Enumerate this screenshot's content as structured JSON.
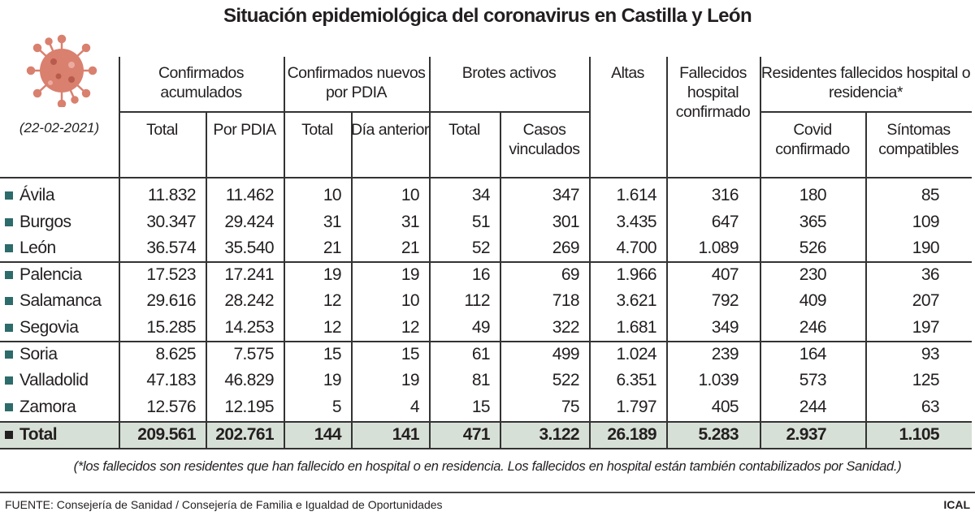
{
  "title": "Situación epidemiológica del coronavirus en Castilla y León",
  "date": "(22-02-2021)",
  "icon": "coronavirus-icon",
  "colors": {
    "bullet": "#2e6b6b",
    "total_row_bg": "#d7e0d6",
    "virus": "#d9806f"
  },
  "header": {
    "groups": [
      "Confirmados acumulados",
      "Confirmados nuevos por PDIA",
      "Brotes activos",
      "Altas",
      "Fallecidos hospital confirmado",
      "Residentes fallecidos hospital o residencia*"
    ],
    "sub": [
      "Total",
      "Por PDIA",
      "Total",
      "Día anterior",
      "Total",
      "Casos vinculados",
      "Covid confirmado",
      "Síntomas compatibles"
    ]
  },
  "chart_data": {
    "type": "table",
    "title": "Situación epidemiológica del coronavirus en Castilla y León",
    "columns": [
      "Confirmados acumulados - Total",
      "Confirmados acumulados - Por PDIA",
      "Confirmados nuevos por PDIA - Total",
      "Confirmados nuevos por PDIA - Día anterior",
      "Brotes activos - Total",
      "Brotes activos - Casos vinculados",
      "Altas",
      "Fallecidos hospital confirmado",
      "Residentes fallecidos - Covid confirmado",
      "Residentes fallecidos - Síntomas compatibles"
    ],
    "rows": [
      {
        "label": "Ávila",
        "values": [
          "11.832",
          "11.462",
          "10",
          "10",
          "34",
          "347",
          "1.614",
          "316",
          "180",
          "85"
        ]
      },
      {
        "label": "Burgos",
        "values": [
          "30.347",
          "29.424",
          "31",
          "31",
          "51",
          "301",
          "3.435",
          "647",
          "365",
          "109"
        ]
      },
      {
        "label": "León",
        "values": [
          "36.574",
          "35.540",
          "21",
          "21",
          "52",
          "269",
          "4.700",
          "1.089",
          "526",
          "190"
        ]
      },
      {
        "label": "Palencia",
        "values": [
          "17.523",
          "17.241",
          "19",
          "19",
          "16",
          "69",
          "1.966",
          "407",
          "230",
          "36"
        ]
      },
      {
        "label": "Salamanca",
        "values": [
          "29.616",
          "28.242",
          "12",
          "10",
          "112",
          "718",
          "3.621",
          "792",
          "409",
          "207"
        ]
      },
      {
        "label": "Segovia",
        "values": [
          "15.285",
          "14.253",
          "12",
          "12",
          "49",
          "322",
          "1.681",
          "349",
          "246",
          "197"
        ]
      },
      {
        "label": "Soria",
        "values": [
          "8.625",
          "7.575",
          "15",
          "15",
          "61",
          "499",
          "1.024",
          "239",
          "164",
          "93"
        ]
      },
      {
        "label": "Valladolid",
        "values": [
          "47.183",
          "46.829",
          "19",
          "19",
          "81",
          "522",
          "6.351",
          "1.039",
          "573",
          "125"
        ]
      },
      {
        "label": "Zamora",
        "values": [
          "12.576",
          "12.195",
          "5",
          "4",
          "15",
          "75",
          "1.797",
          "405",
          "244",
          "63"
        ]
      }
    ],
    "total": {
      "label": "Total",
      "values": [
        "209.561",
        "202.761",
        "144",
        "141",
        "471",
        "3.122",
        "26.189",
        "5.283",
        "2.937",
        "1.105"
      ]
    }
  },
  "footnote": "(*los fallecidos son residentes que han fallecido en hospital o en residencia. Los fallecidos en hospital están también contabilizados por Sanidad.)",
  "source": "FUENTE: Consejería de Sanidad / Consejería de Familia e Igualdad de Oportunidades",
  "brand": "ICAL"
}
